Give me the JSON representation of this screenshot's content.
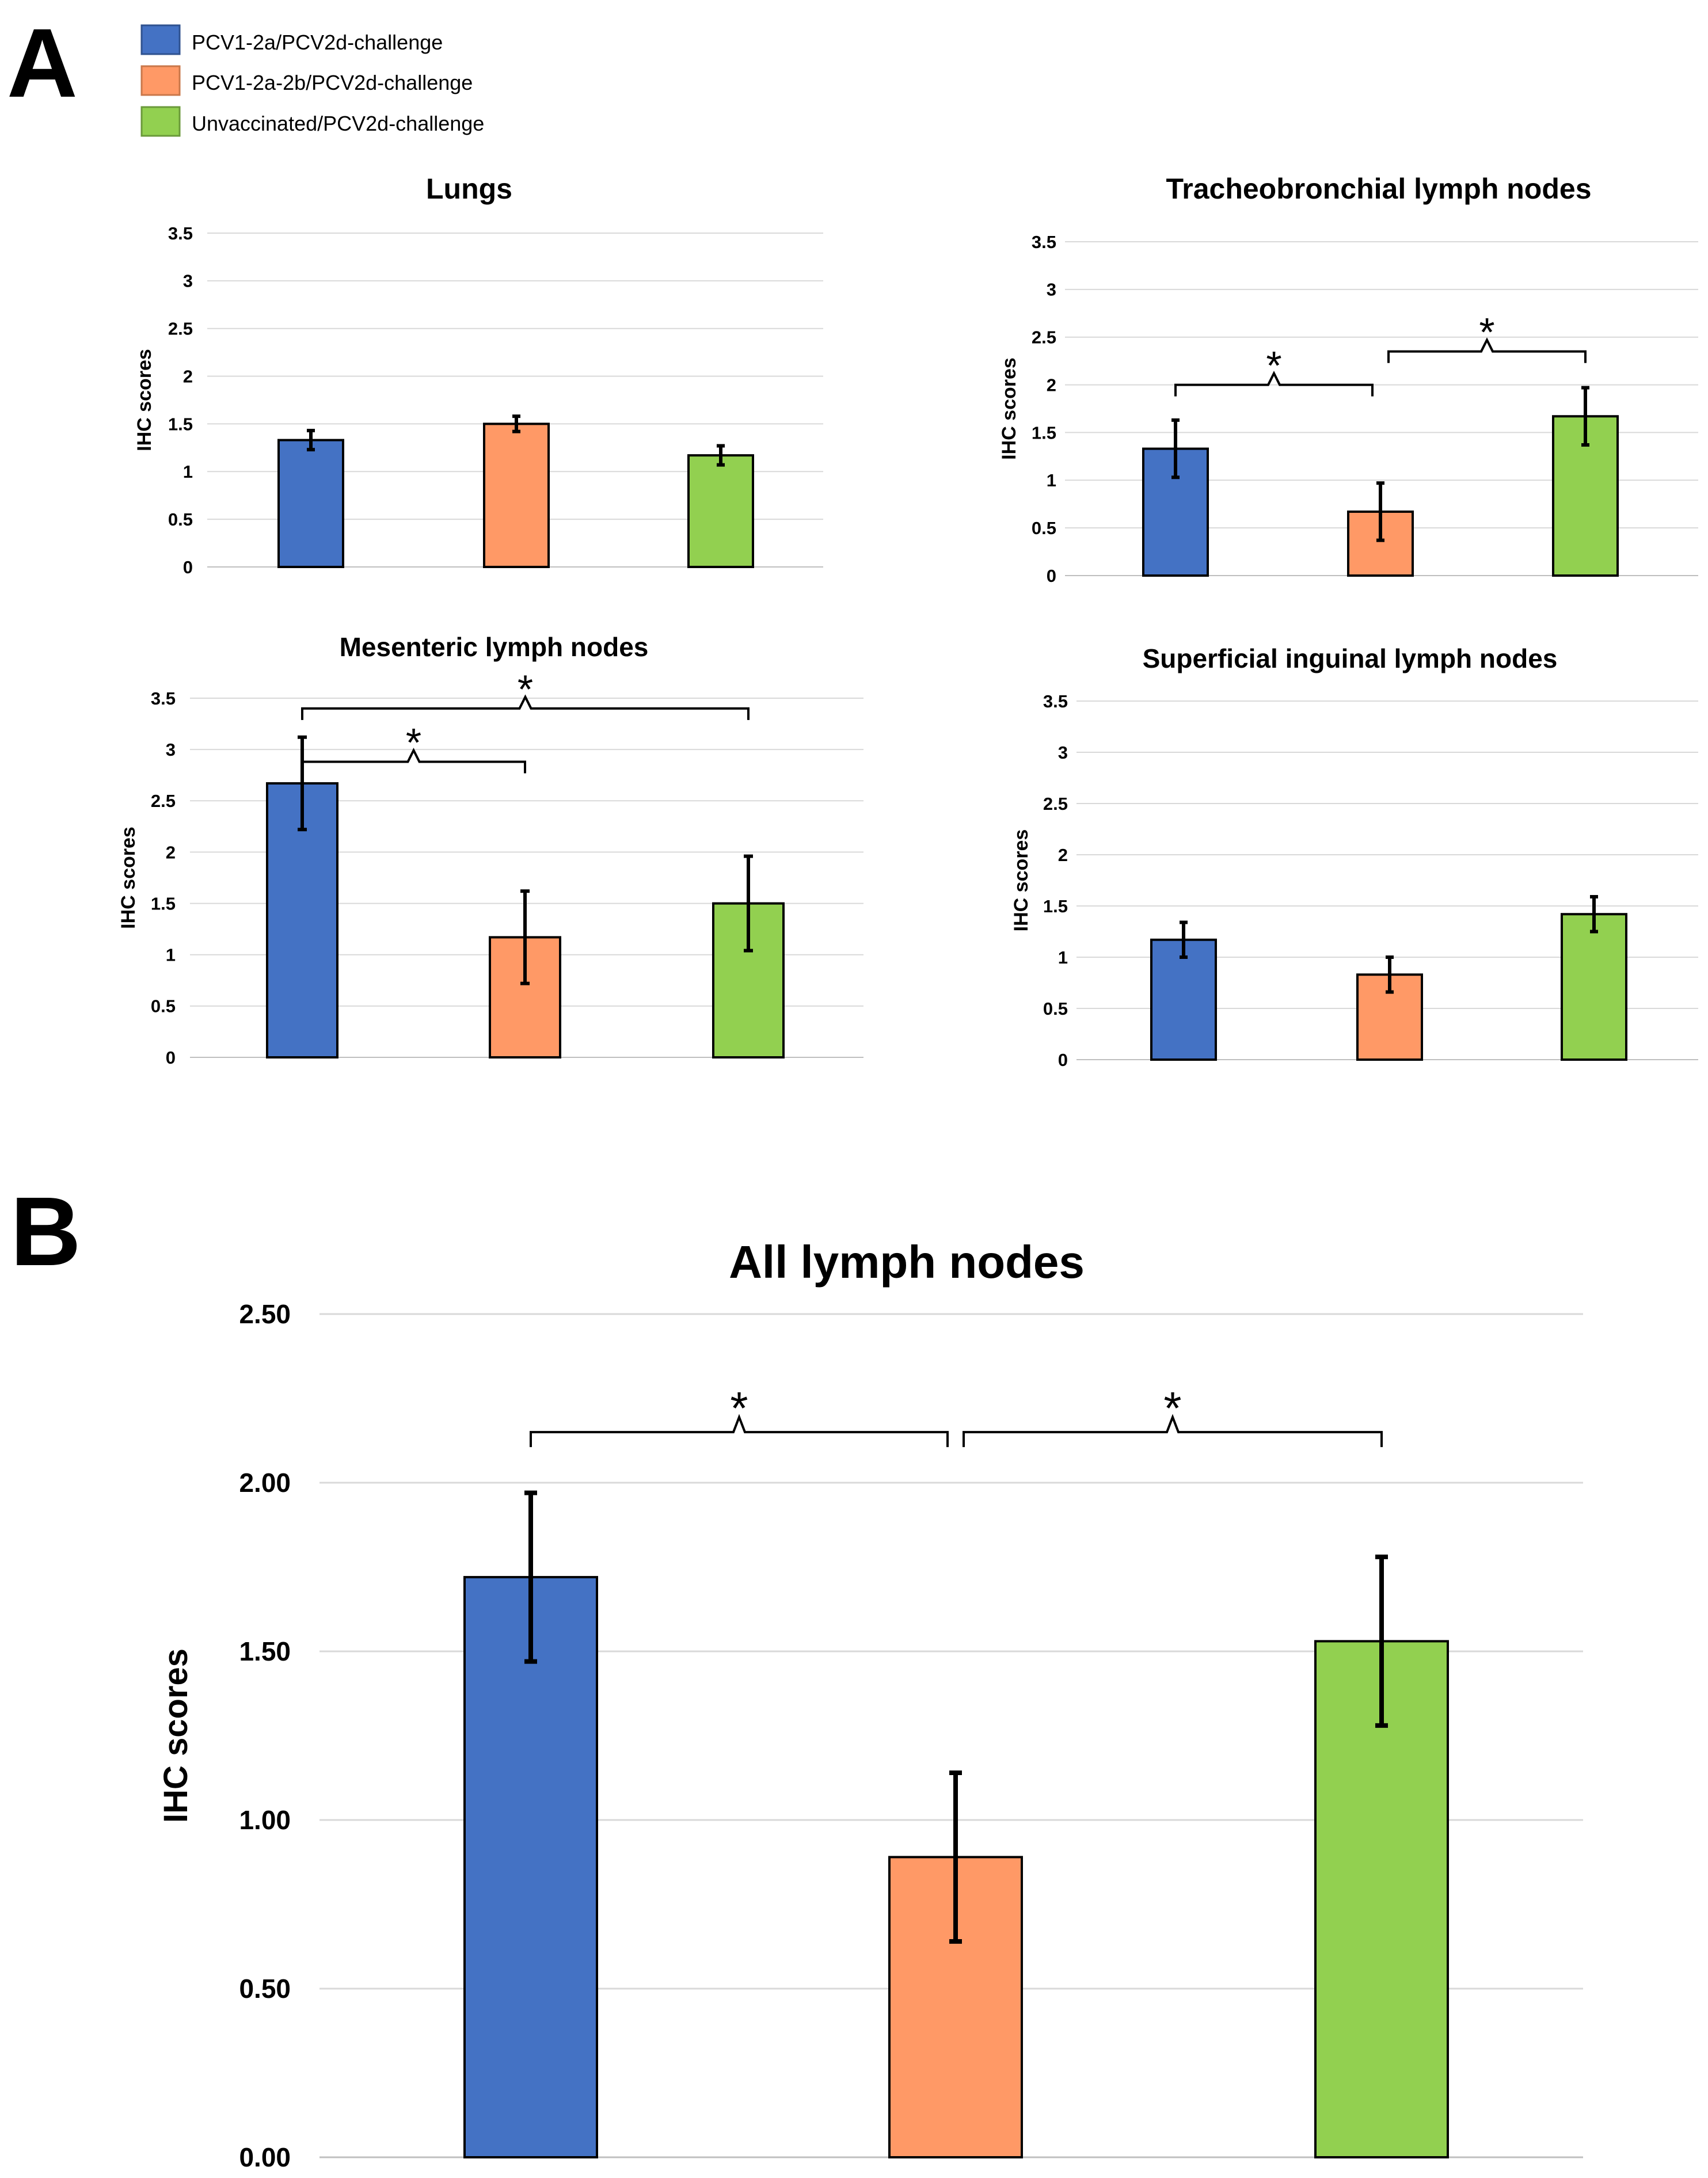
{
  "panels": {
    "a": "A",
    "b": "B"
  },
  "colors": {
    "blue": "#4472c4",
    "orange": "#ff9966",
    "green": "#92d050",
    "grid": "#d9d9d9",
    "axis": "#bfbfbf"
  },
  "legend": [
    {
      "label": "PCV1-2a/PCV2d-challenge",
      "color": "#4472c4"
    },
    {
      "label": "PCV1-2a-2b/PCV2d-challenge",
      "color": "#ff9966"
    },
    {
      "label": "Unvaccinated/PCV2d-challenge",
      "color": "#92d050"
    }
  ],
  "chart_data": [
    {
      "type": "bar",
      "title": "Lungs",
      "ylabel": "IHC scores",
      "xlabel": "",
      "ylim": [
        0,
        3.5
      ],
      "yticks": [
        "0",
        "0.5",
        "1",
        "1.5",
        "2",
        "2.5",
        "3",
        "3.5"
      ],
      "categories": [
        "PCV1-2a/PCV2d-challenge",
        "PCV1-2a-2b/PCV2d-challenge",
        "Unvaccinated/PCV2d-challenge"
      ],
      "values": [
        1.33,
        1.5,
        1.17
      ],
      "errors": [
        0.1,
        0.08,
        0.1
      ],
      "significance": []
    },
    {
      "type": "bar",
      "title": "Tracheobronchial lymph nodes",
      "ylabel": "IHC scores",
      "xlabel": "",
      "ylim": [
        0,
        3.5
      ],
      "yticks": [
        "0",
        "0.5",
        "1",
        "1.5",
        "2",
        "2.5",
        "3",
        "3.5"
      ],
      "categories": [
        "PCV1-2a/PCV2d-challenge",
        "PCV1-2a-2b/PCV2d-challenge",
        "Unvaccinated/PCV2d-challenge"
      ],
      "values": [
        1.33,
        0.67,
        1.67
      ],
      "errors": [
        0.3,
        0.3,
        0.3
      ],
      "significance": [
        {
          "from": 0,
          "to": 1,
          "label": "*",
          "y": 2.0
        },
        {
          "from": 1,
          "to": 2,
          "label": "*",
          "y": 2.35
        }
      ]
    },
    {
      "type": "bar",
      "title": "Mesenteric lymph nodes",
      "ylabel": "IHC scores",
      "xlabel": "",
      "ylim": [
        0,
        3.5
      ],
      "yticks": [
        "0",
        "0.5",
        "1",
        "1.5",
        "2",
        "2.5",
        "3",
        "3.5"
      ],
      "categories": [
        "PCV1-2a/PCV2d-challenge",
        "PCV1-2a-2b/PCV2d-challenge",
        "Unvaccinated/PCV2d-challenge"
      ],
      "values": [
        2.67,
        1.17,
        1.5
      ],
      "errors": [
        0.45,
        0.45,
        0.46
      ],
      "significance": [
        {
          "from": 0,
          "to": 1,
          "label": "*",
          "y": 2.88
        },
        {
          "from": 0,
          "to": 2,
          "label": "*",
          "y": 3.4
        }
      ]
    },
    {
      "type": "bar",
      "title": "Superficial inguinal lymph nodes",
      "ylabel": "IHC scores",
      "xlabel": "",
      "ylim": [
        0,
        3.5
      ],
      "yticks": [
        "0",
        "0.5",
        "1",
        "1.5",
        "2",
        "2.5",
        "3",
        "3.5"
      ],
      "categories": [
        "PCV1-2a/PCV2d-challenge",
        "PCV1-2a-2b/PCV2d-challenge",
        "Unvaccinated/PCV2d-challenge"
      ],
      "values": [
        1.17,
        0.83,
        1.42
      ],
      "errors": [
        0.17,
        0.17,
        0.17
      ],
      "significance": []
    },
    {
      "type": "bar",
      "title": "All lymph nodes",
      "ylabel": "IHC scores",
      "xlabel": "",
      "ylim": [
        0,
        2.5
      ],
      "yticks": [
        "0.00",
        "0.50",
        "1.00",
        "1.50",
        "2.00",
        "2.50"
      ],
      "categories": [
        "PCV1-2a/PCV2d-challenge",
        "PCV1-2a-2b/PCV2d-challenge",
        "Unvaccinated/PCV2d-challenge"
      ],
      "values": [
        1.72,
        0.89,
        1.53
      ],
      "errors": [
        0.25,
        0.25,
        0.25
      ],
      "significance": [
        {
          "from": 0,
          "to": 1,
          "label": "*",
          "y": 2.15
        },
        {
          "from": 1,
          "to": 2,
          "label": "*",
          "y": 2.15
        }
      ]
    }
  ]
}
